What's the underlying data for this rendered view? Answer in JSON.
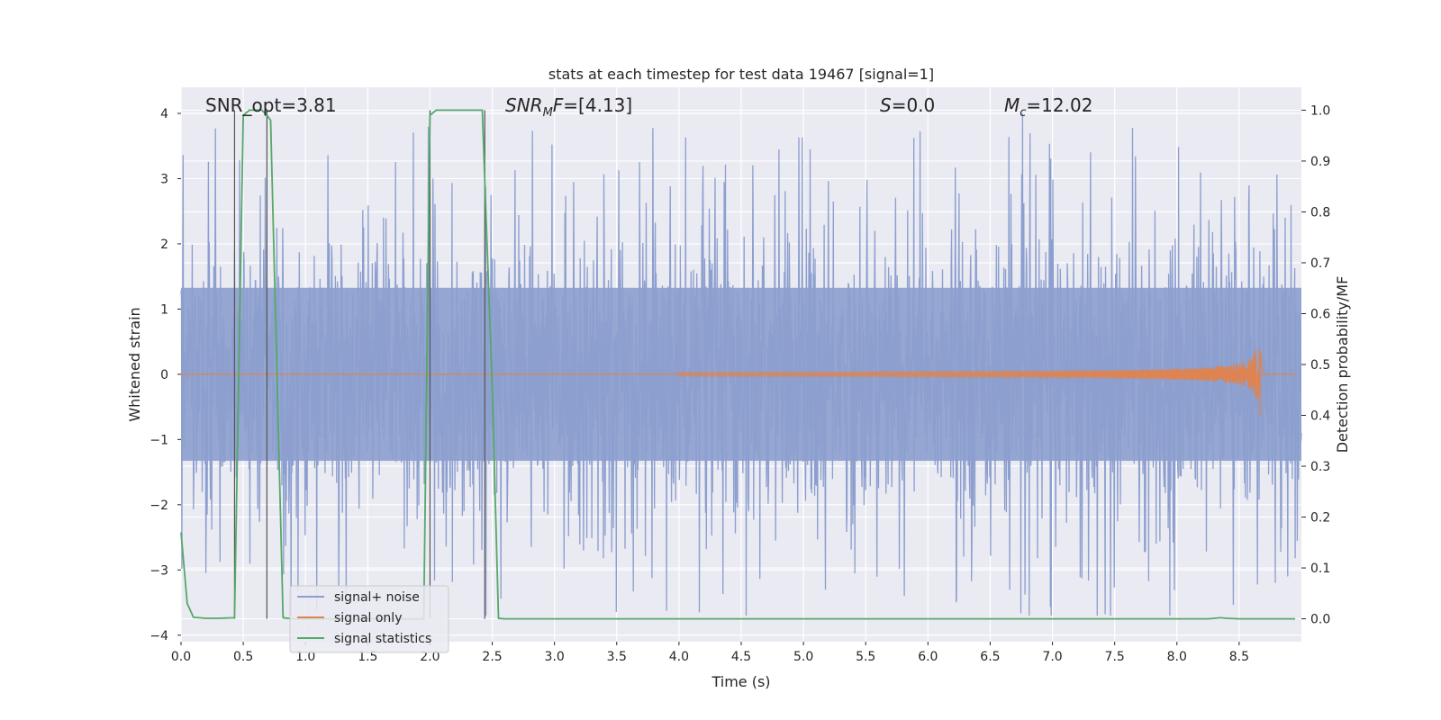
{
  "chart_data": {
    "type": "line",
    "title": "stats at each timestep for test data 19467 [signal=1]",
    "xlabel": "Time (s)",
    "ylabel": "Whitened strain",
    "y2label": "Detection probability/MF",
    "xlim": [
      0,
      9.0
    ],
    "ylim": [
      -4.1,
      4.4
    ],
    "y2lim": [
      -0.045,
      1.045
    ],
    "x_ticks": [
      "0.0",
      "0.5",
      "1.0",
      "1.5",
      "2.0",
      "2.5",
      "3.0",
      "3.5",
      "4.0",
      "4.5",
      "5.0",
      "5.5",
      "6.0",
      "6.5",
      "7.0",
      "7.5",
      "8.0",
      "8.5"
    ],
    "x_tick_values": [
      0,
      0.5,
      1.0,
      1.5,
      2.0,
      2.5,
      3.0,
      3.5,
      4.0,
      4.5,
      5.0,
      5.5,
      6.0,
      6.5,
      7.0,
      7.5,
      8.0,
      8.5
    ],
    "y_ticks": [
      "4",
      "3",
      "2",
      "1",
      "0",
      "−1",
      "−2",
      "−3",
      "−4"
    ],
    "y_tick_values": [
      4,
      3,
      2,
      1,
      0,
      -1,
      -2,
      -3,
      -4
    ],
    "y2_ticks": [
      "1.0",
      "0.9",
      "0.8",
      "0.7",
      "0.6",
      "0.5",
      "0.4",
      "0.3",
      "0.2",
      "0.1",
      "0.0"
    ],
    "y2_tick_values": [
      1.0,
      0.9,
      0.8,
      0.7,
      0.6,
      0.5,
      0.4,
      0.3,
      0.2,
      0.1,
      0.0
    ],
    "grid": true,
    "legend_placement": "lower-left",
    "annotations": {
      "snr_opt": "SNR_opt=3.81",
      "snr_mf_prefix": "SNR",
      "snr_mf_sub": "M",
      "snr_mf_suffix": "F=[4.13]",
      "s_label": "S",
      "s_value": "=0.0",
      "mc_label": "M",
      "mc_sub": "c",
      "mc_value": "=12.02"
    },
    "series": [
      {
        "name": "signal+ noise",
        "color": "#8c9fce",
        "envelope": {
          "typical_abs": 1.7,
          "peak_max": 4.0,
          "peak_min": -3.7,
          "samples_per_second": 300
        }
      },
      {
        "name": "signal only",
        "color": "#dd8452",
        "chirp": {
          "start": 4.0,
          "merger": 8.67,
          "peak_pos": 0.58,
          "peak_neg": -0.75
        }
      },
      {
        "name": "signal statistics",
        "color": "#55a868",
        "x": [
          0.0,
          0.05,
          0.1,
          0.2,
          0.3,
          0.43,
          0.5,
          0.55,
          0.65,
          0.69,
          0.72,
          0.82,
          0.9,
          1.5,
          1.95,
          2.0,
          2.05,
          2.1,
          2.3,
          2.42,
          2.5,
          2.55,
          2.6,
          3.0,
          4.0,
          5.0,
          6.0,
          7.0,
          8.0,
          8.25,
          8.35,
          8.4,
          8.5,
          8.95
        ],
        "y": [
          0.17,
          0.03,
          0.003,
          0.001,
          0.001,
          0.002,
          0.99,
          1.0,
          1.0,
          0.99,
          0.98,
          0.002,
          0.0,
          0.0,
          0.0,
          0.99,
          1.0,
          1.0,
          1.0,
          1.0,
          0.45,
          0.001,
          0.0,
          0.0,
          0.0,
          0.0,
          0.0,
          0.0,
          0.0,
          0.0,
          0.002,
          0.001,
          0.0,
          0.0
        ]
      },
      {
        "name": "markers",
        "color": "#555555",
        "x": [
          0.43,
          0.69,
          2.0,
          2.44
        ]
      }
    ]
  }
}
